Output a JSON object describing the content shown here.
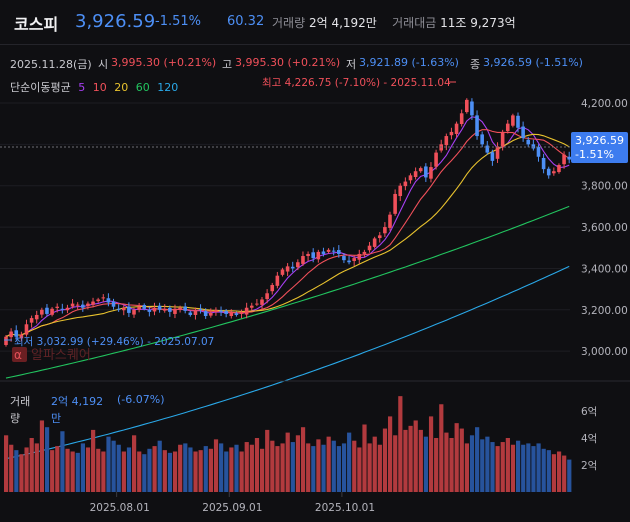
{
  "header": {
    "title": "코스피",
    "price": "3,926.59",
    "change_pct": "-1.51%",
    "change_pt": "60.32",
    "volume_label": "거래량",
    "volume_value": "2억 4,192만",
    "amount_label": "거래대금",
    "amount_value": "11조 9,273억"
  },
  "info": {
    "date": "2025.11.28(금)",
    "open_label": "시",
    "open_value": "3,995.30 (+0.21%)",
    "high_label": "고",
    "high_value": "3,995.30 (+0.21%)",
    "low_label": "저",
    "low_value": "3,921.89 (-1.63%)",
    "close_label": "종",
    "close_value": "3,926.59 (-1.51%)"
  },
  "ma_legend": {
    "label": "단순이동평균",
    "periods": [
      "5",
      "10",
      "20",
      "60",
      "120"
    ],
    "colors": [
      "#a63ff2",
      "#f0505a",
      "#e8c22e",
      "#22c45f",
      "#2aa8e8"
    ]
  },
  "annotations": {
    "max_label": "최고 4,226.75 (-7.10%) - 2025.11.04",
    "min_label": "최저 3,032.99 (+29.46%) - 2025.07.07",
    "watermark": "알파스퀘어",
    "watermark_logo": "α"
  },
  "current_tag": {
    "price": "3,926.59",
    "pct": "-1.51%"
  },
  "y_axis_labels": [
    "4,200.00",
    "4,000.00",
    "3,800.00",
    "3,600.00",
    "3,400.00",
    "3,200.00",
    "3,000.00"
  ],
  "volume": {
    "label": "거래량",
    "value": "2억 4,192",
    "unit": "만",
    "pct": "(-6.07%)",
    "axis_labels": [
      "6억",
      "4억",
      "2억"
    ]
  },
  "x_axis_labels": [
    "2025.08.01",
    "2025.09.01",
    "2025.10.01"
  ],
  "colors": {
    "up": "#f0505a",
    "down": "#4d8ff5",
    "vol_up": "#b23a3e",
    "vol_down": "#27539c"
  },
  "chart_data": {
    "type": "candlestick",
    "ylim": [
      2880,
      4340
    ],
    "vol_ylim": [
      0,
      8
    ],
    "close": [
      3070,
      3095,
      3070,
      3080,
      3130,
      3160,
      3175,
      3200,
      3180,
      3205,
      3215,
      3200,
      3210,
      3230,
      3225,
      3210,
      3230,
      3240,
      3250,
      3260,
      3235,
      3215,
      3200,
      3210,
      3185,
      3200,
      3215,
      3205,
      3190,
      3210,
      3200,
      3205,
      3190,
      3205,
      3210,
      3195,
      3175,
      3195,
      3200,
      3170,
      3185,
      3200,
      3190,
      3180,
      3185,
      3175,
      3185,
      3210,
      3220,
      3230,
      3250,
      3280,
      3320,
      3365,
      3395,
      3410,
      3400,
      3430,
      3460,
      3470,
      3450,
      3480,
      3470,
      3490,
      3485,
      3470,
      3440,
      3430,
      3450,
      3470,
      3480,
      3510,
      3545,
      3560,
      3600,
      3660,
      3760,
      3800,
      3820,
      3850,
      3870,
      3885,
      3840,
      3890,
      3960,
      4000,
      4040,
      4060,
      4100,
      4150,
      4215,
      4140,
      4040,
      4000,
      3960,
      3920,
      3990,
      4060,
      4100,
      4140,
      4080,
      4030,
      4000,
      3980,
      3940,
      3880,
      3850,
      3870,
      3900,
      3950,
      3926.59
    ],
    "volume": [
      4.2,
      3.5,
      3.1,
      2.8,
      3.3,
      4.0,
      3.6,
      5.3,
      4.8,
      3.1,
      3.4,
      4.5,
      3.2,
      3.0,
      2.9,
      3.6,
      3.3,
      4.6,
      3.2,
      3.0,
      4.1,
      3.8,
      3.5,
      3.0,
      3.3,
      4.2,
      3.0,
      2.8,
      3.2,
      3.4,
      3.8,
      3.1,
      2.9,
      3.0,
      3.5,
      3.6,
      3.3,
      3.0,
      3.1,
      3.4,
      3.2,
      3.9,
      3.6,
      3.0,
      3.3,
      3.5,
      3.0,
      3.7,
      3.5,
      4.0,
      3.2,
      4.6,
      3.8,
      3.4,
      3.6,
      4.4,
      3.7,
      4.2,
      4.8,
      3.6,
      3.4,
      3.9,
      3.5,
      4.1,
      3.8,
      3.4,
      3.6,
      4.4,
      3.8,
      3.3,
      5.0,
      3.6,
      4.1,
      3.5,
      4.7,
      5.6,
      4.2,
      7.1,
      4.6,
      4.9,
      5.3,
      4.6,
      4.1,
      5.6,
      4.0,
      6.5,
      4.4,
      4.0,
      5.1,
      4.7,
      3.6,
      4.2,
      4.8,
      3.9,
      4.1,
      3.7,
      3.4,
      3.7,
      4.0,
      3.5,
      3.8,
      3.5,
      3.6,
      3.4,
      3.6,
      3.2,
      3.1,
      2.8,
      3.0,
      2.7,
      2.4
    ],
    "ma60_endpoints": [
      [
        0,
        2870
      ],
      [
        110,
        3700
      ]
    ],
    "ma120_endpoints": [
      [
        0,
        2480
      ],
      [
        110,
        3410
      ]
    ]
  }
}
